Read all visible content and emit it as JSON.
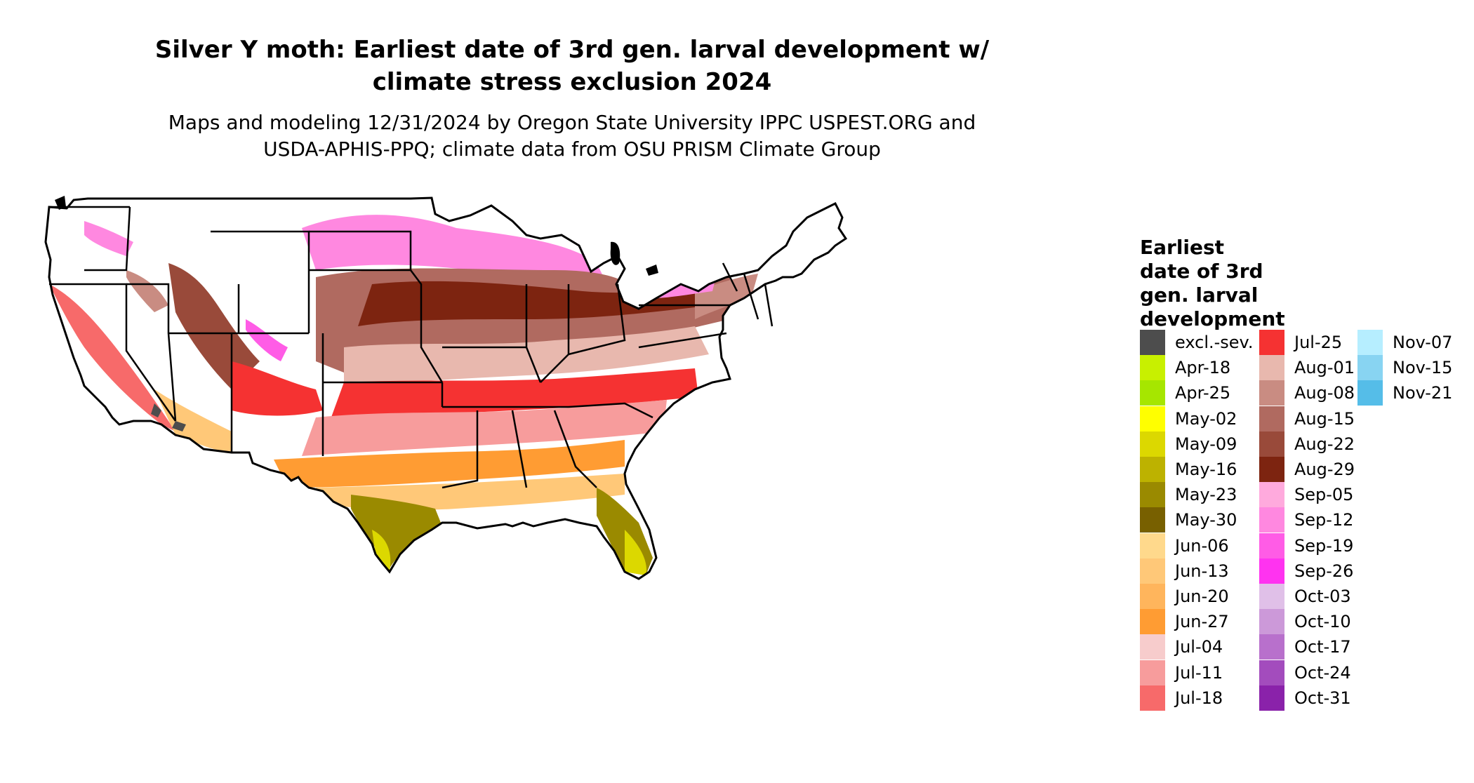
{
  "title_line1": "Silver Y moth: Earliest date of 3rd gen. larval development w/",
  "title_line2": "climate stress exclusion 2024",
  "subtitle_line1": "Maps and modeling 12/31/2024 by Oregon State University IPPC USPEST.ORG and",
  "subtitle_line2": "USDA-APHIS-PPQ; climate data from OSU PRISM Climate Group",
  "legend": {
    "title_lines": [
      "Earliest",
      "date of 3rd",
      "gen. larval",
      "development"
    ],
    "items": [
      {
        "label": "excl.-sev.",
        "color": "#4d4d4d"
      },
      {
        "label": "Apr-18",
        "color": "#c8f000"
      },
      {
        "label": "Apr-25",
        "color": "#a6e600"
      },
      {
        "label": "May-02",
        "color": "#ffff00"
      },
      {
        "label": "May-09",
        "color": "#dcd800"
      },
      {
        "label": "May-16",
        "color": "#bdb200"
      },
      {
        "label": "May-23",
        "color": "#9a8a00"
      },
      {
        "label": "May-30",
        "color": "#786000"
      },
      {
        "label": "Jun-06",
        "color": "#ffd98c"
      },
      {
        "label": "Jun-13",
        "color": "#ffc878"
      },
      {
        "label": "Jun-20",
        "color": "#ffb55c"
      },
      {
        "label": "Jun-27",
        "color": "#ff9c33"
      },
      {
        "label": "Jul-04",
        "color": "#f7cccc"
      },
      {
        "label": "Jul-11",
        "color": "#f79c9c"
      },
      {
        "label": "Jul-18",
        "color": "#f76a6a"
      },
      {
        "label": "Jul-25",
        "color": "#f53232"
      },
      {
        "label": "Aug-01",
        "color": "#e8b8ae"
      },
      {
        "label": "Aug-08",
        "color": "#c98c82"
      },
      {
        "label": "Aug-15",
        "color": "#b06a60"
      },
      {
        "label": "Aug-22",
        "color": "#994a3a"
      },
      {
        "label": "Aug-29",
        "color": "#7d2410"
      },
      {
        "label": "Sep-05",
        "color": "#ffaadd"
      },
      {
        "label": "Sep-12",
        "color": "#ff88e0"
      },
      {
        "label": "Sep-19",
        "color": "#ff5ce6"
      },
      {
        "label": "Sep-26",
        "color": "#ff33f0"
      },
      {
        "label": "Oct-03",
        "color": "#e0c0e8"
      },
      {
        "label": "Oct-10",
        "color": "#cc99d9"
      },
      {
        "label": "Oct-17",
        "color": "#b870cc"
      },
      {
        "label": "Oct-24",
        "color": "#a34cbd"
      },
      {
        "label": "Oct-31",
        "color": "#8a22aa"
      },
      {
        "label": "Nov-07",
        "color": "#b6eeff"
      },
      {
        "label": "Nov-15",
        "color": "#88d4f2"
      },
      {
        "label": "Nov-21",
        "color": "#55bde8"
      }
    ]
  }
}
